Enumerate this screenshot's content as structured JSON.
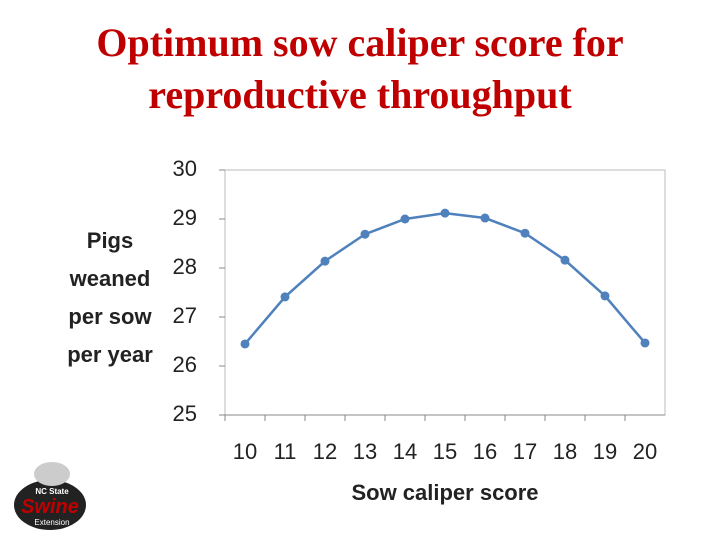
{
  "chart_data": {
    "type": "line",
    "title": "Optimum sow caliper score for reproductive throughput",
    "y_label_lines": [
      "Pigs",
      "weaned",
      "per sow",
      "per year"
    ],
    "x_label": "Sow caliper score",
    "categories": [
      "10",
      "11",
      "12",
      "13",
      "14",
      "15",
      "16",
      "17",
      "18",
      "19",
      "20"
    ],
    "series": [
      {
        "color": "#4f81bd",
        "values": [
          26.45,
          27.41,
          28.14,
          28.69,
          29.0,
          29.12,
          29.02,
          28.71,
          28.16,
          27.43,
          26.47
        ]
      }
    ],
    "ylim": [
      25,
      30
    ],
    "yticks": [
      25,
      26,
      27,
      28,
      29,
      30
    ],
    "grid": false
  },
  "logo": {
    "top": "NC State",
    "main": "Swine",
    "bottom": "Extension"
  }
}
